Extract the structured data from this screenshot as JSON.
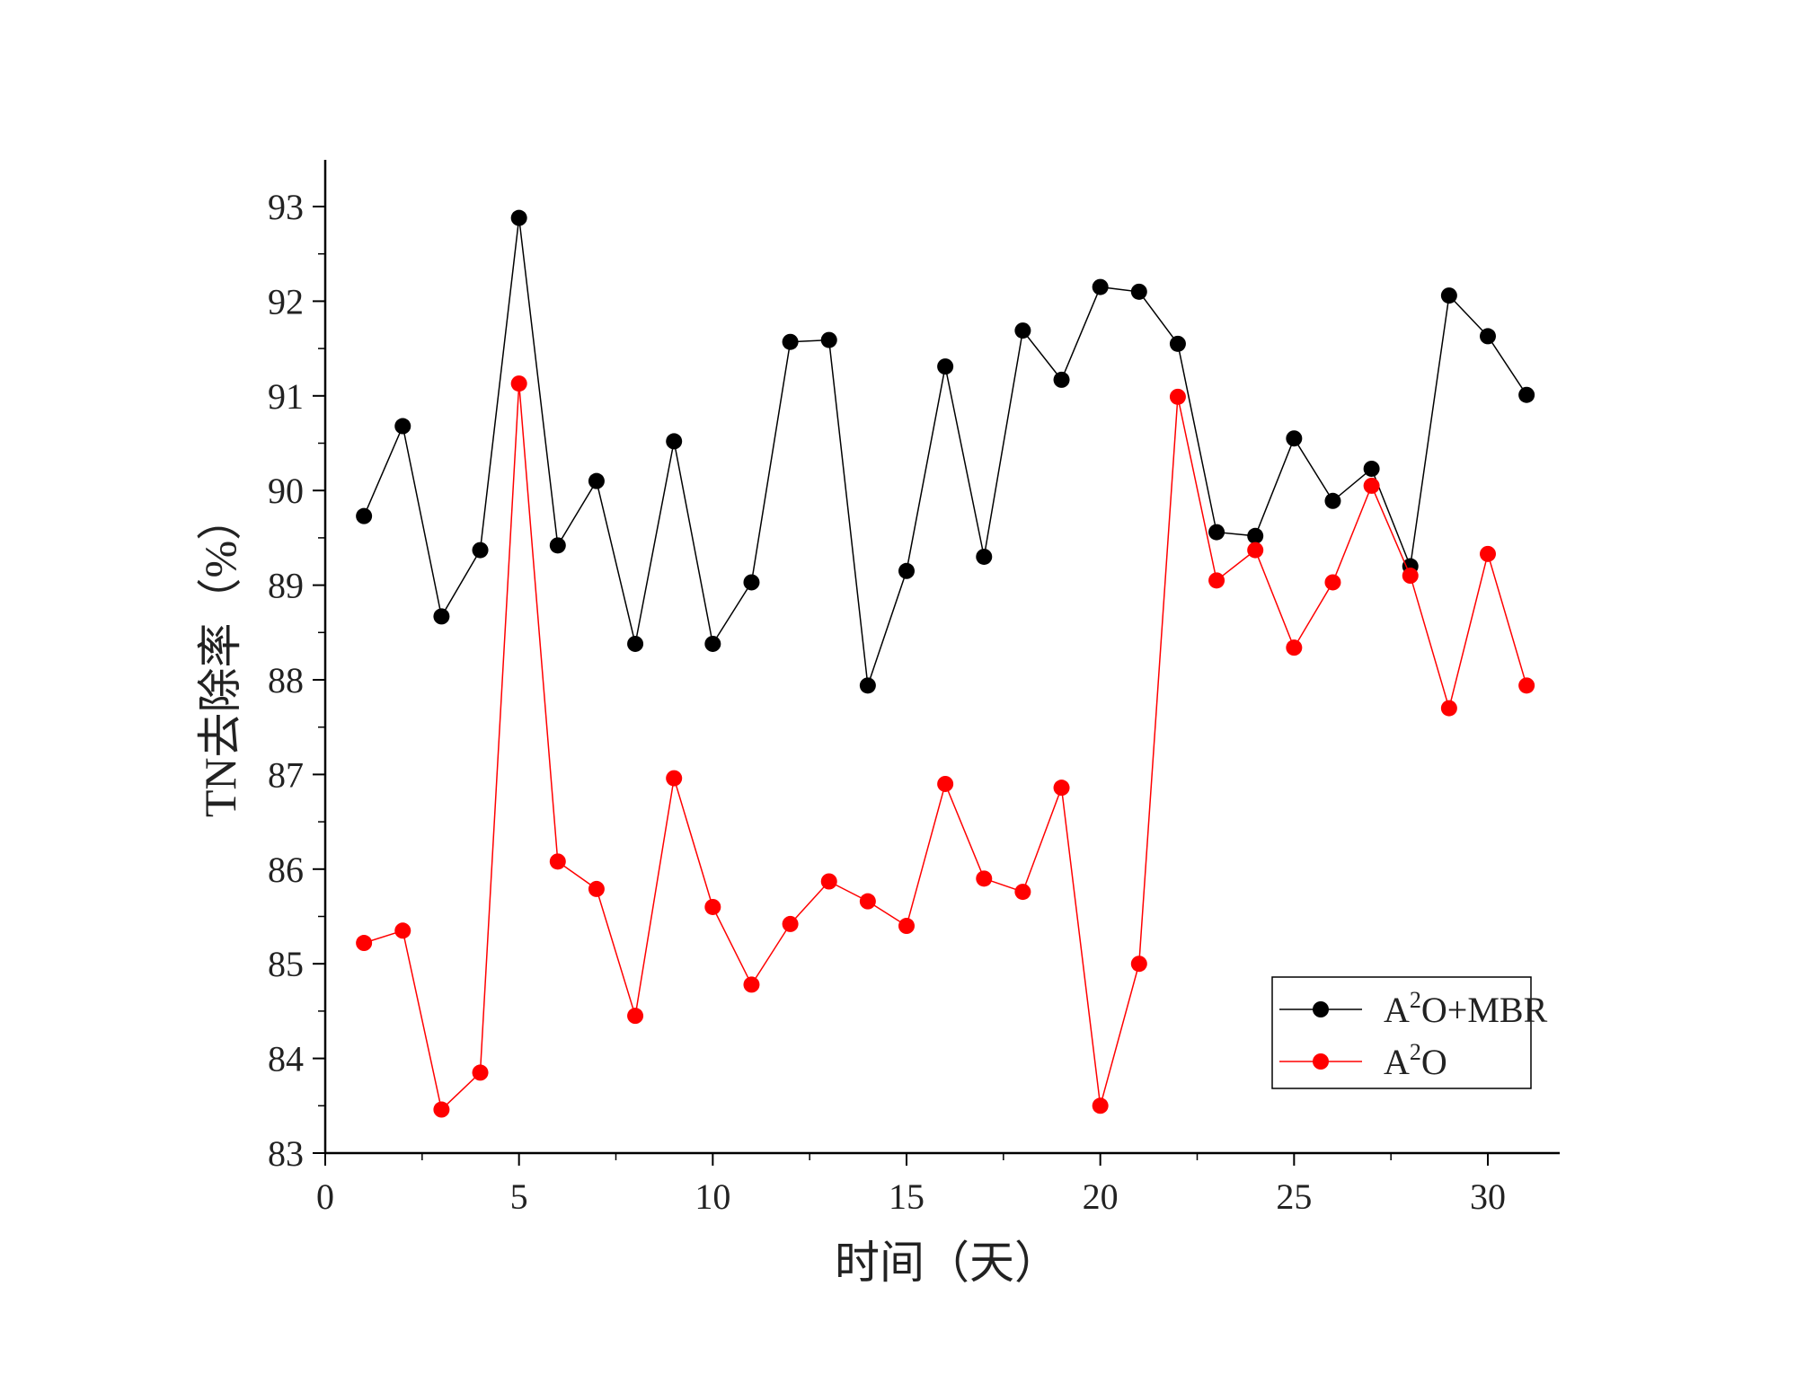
{
  "chart_data": {
    "type": "line",
    "title": "",
    "xlabel": "时间（天）",
    "ylabel": "TN去除率（%）",
    "xlim": [
      0,
      32
    ],
    "ylim": [
      83,
      93.5
    ],
    "xticks": [
      0,
      5,
      10,
      15,
      20,
      25,
      30
    ],
    "yticks": [
      83,
      84,
      85,
      86,
      87,
      88,
      89,
      90,
      91,
      92,
      93
    ],
    "grid": false,
    "legend_position": "bottom-right",
    "x": [
      1,
      2,
      3,
      4,
      5,
      6,
      7,
      8,
      9,
      10,
      11,
      12,
      13,
      14,
      15,
      16,
      17,
      18,
      19,
      20,
      21,
      22,
      23,
      24,
      25,
      26,
      27,
      28,
      29,
      30,
      31
    ],
    "series": [
      {
        "name": "A2O+MBR",
        "legend_base": "A",
        "legend_sup": "2",
        "legend_rest": "O+MBR",
        "color": "#000000",
        "values": [
          89.73,
          90.68,
          88.67,
          89.37,
          92.88,
          89.42,
          90.1,
          88.38,
          90.52,
          88.38,
          89.03,
          91.57,
          91.59,
          87.94,
          89.15,
          91.31,
          89.3,
          91.69,
          91.17,
          92.15,
          92.1,
          91.55,
          89.56,
          89.52,
          90.55,
          89.89,
          90.23,
          89.2,
          92.06,
          91.63,
          91.01
        ]
      },
      {
        "name": "A2O",
        "legend_base": "A",
        "legend_sup": "2",
        "legend_rest": "O",
        "color": "#ff0000",
        "values": [
          85.22,
          85.35,
          83.46,
          83.85,
          91.13,
          86.08,
          85.79,
          84.45,
          86.96,
          85.6,
          84.78,
          85.42,
          85.87,
          85.66,
          85.4,
          86.9,
          85.9,
          85.76,
          86.86,
          83.5,
          85.0,
          90.99,
          89.05,
          89.37,
          88.34,
          89.03,
          90.05,
          89.1,
          87.7,
          89.33,
          87.94
        ]
      }
    ]
  }
}
